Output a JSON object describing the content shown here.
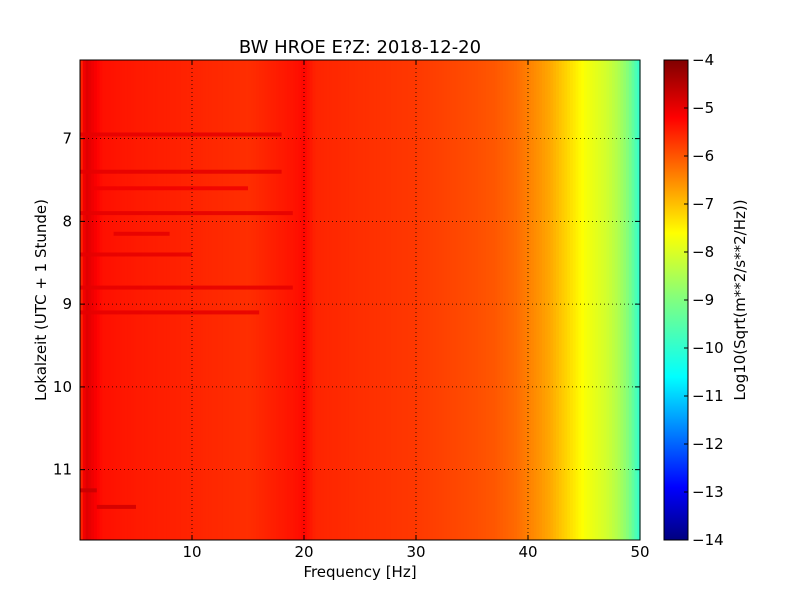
{
  "chart_data": {
    "type": "heatmap",
    "title": "BW HROE E?Z: 2018-12-20",
    "xlabel": "Frequency [Hz]",
    "ylabel": "Lokalzeit (UTC + 1 Stunde)",
    "xlim": [
      0,
      50
    ],
    "ylim": [
      11.85,
      6.05
    ],
    "y_axis_inverted": true,
    "x_ticks": [
      10,
      20,
      30,
      40,
      50
    ],
    "y_ticks": [
      7,
      8,
      9,
      10,
      11
    ],
    "x_tick_labels": [
      "10",
      "20",
      "30",
      "40",
      "50"
    ],
    "y_tick_labels": [
      "7",
      "8",
      "9",
      "10",
      "11"
    ],
    "grid": true,
    "grid_style": "dotted",
    "colormap": "jet",
    "colorbar": {
      "label": "Log10(Sqrt(m**2/s**2/Hz))",
      "range": [
        -14,
        -4
      ],
      "ticks": [
        -4,
        -5,
        -6,
        -7,
        -8,
        -9,
        -10,
        -11,
        -12,
        -13,
        -14
      ],
      "tick_labels": [
        "−4",
        "−5",
        "−6",
        "−7",
        "−8",
        "−9",
        "−10",
        "−11",
        "−12",
        "−13",
        "−14"
      ]
    },
    "frequency_profile": {
      "frequency_hz": [
        0,
        0.5,
        2,
        5,
        10,
        15,
        19.5,
        20,
        21,
        25,
        30,
        35,
        37,
        39,
        40,
        41,
        42,
        43,
        44,
        45,
        46,
        47,
        48,
        49,
        50
      ],
      "log10_amplitude": [
        -5.8,
        -4.9,
        -5.4,
        -5.5,
        -5.6,
        -5.7,
        -5.4,
        -5.3,
        -5.6,
        -5.7,
        -5.8,
        -6.0,
        -6.1,
        -6.3,
        -6.5,
        -6.7,
        -6.9,
        -7.2,
        -7.5,
        -7.8,
        -8.0,
        -8.2,
        -8.5,
        -9.0,
        -9.8
      ]
    },
    "horizontal_bands": [
      {
        "time": 6.95,
        "f_start": 0,
        "f_end": 18,
        "log10_amplitude": -5.0
      },
      {
        "time": 7.4,
        "f_start": 0,
        "f_end": 18,
        "log10_amplitude": -5.0
      },
      {
        "time": 7.6,
        "f_start": 1,
        "f_end": 15,
        "log10_amplitude": -5.1
      },
      {
        "time": 7.9,
        "f_start": 0,
        "f_end": 19,
        "log10_amplitude": -5.0
      },
      {
        "time": 8.15,
        "f_start": 3,
        "f_end": 8,
        "log10_amplitude": -5.0
      },
      {
        "time": 8.4,
        "f_start": 0,
        "f_end": 10,
        "log10_amplitude": -5.0
      },
      {
        "time": 8.8,
        "f_start": 0,
        "f_end": 19,
        "log10_amplitude": -5.0
      },
      {
        "time": 9.1,
        "f_start": 0,
        "f_end": 16,
        "log10_amplitude": -5.0
      },
      {
        "time": 11.25,
        "f_start": 0,
        "f_end": 1.5,
        "log10_amplitude": -4.7
      },
      {
        "time": 11.45,
        "f_start": 1.5,
        "f_end": 5,
        "log10_amplitude": -4.8
      }
    ]
  }
}
